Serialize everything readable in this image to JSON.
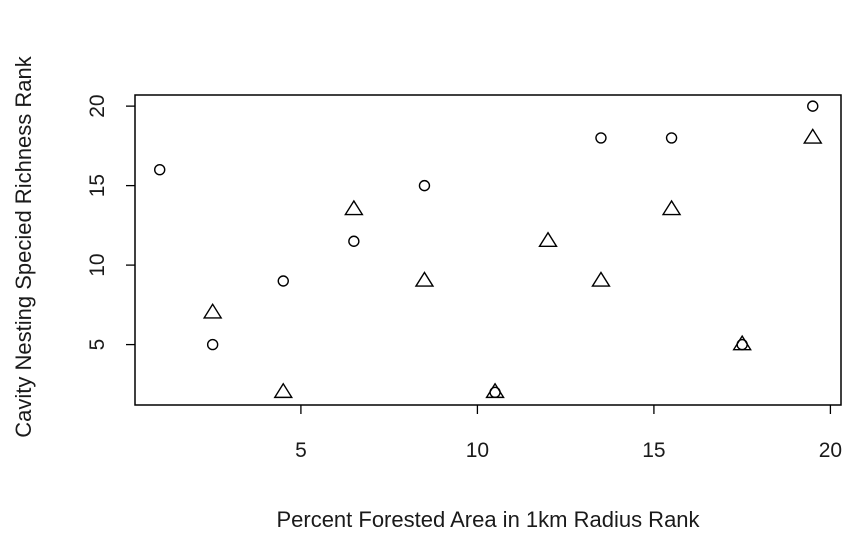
{
  "chart_data": {
    "type": "scatter",
    "title": "",
    "xlabel": "Percent Forested Area in 1km Radius Rank",
    "ylabel": "Cavity Nesting Specied Richness Rank",
    "xlim": [
      0.3,
      20.3
    ],
    "ylim": [
      1.2,
      20.7
    ],
    "x_ticks": [
      5,
      10,
      15,
      20
    ],
    "y_ticks": [
      5,
      10,
      15,
      20
    ],
    "grid": false,
    "legend": "none",
    "series": [
      {
        "marker": "circle",
        "points": [
          [
            1,
            16
          ],
          [
            2.5,
            5
          ],
          [
            4.5,
            9
          ],
          [
            6.5,
            11.5
          ],
          [
            8.5,
            15
          ],
          [
            10.5,
            2
          ],
          [
            13.5,
            18
          ],
          [
            15.5,
            18
          ],
          [
            17.5,
            5
          ],
          [
            19.5,
            20
          ]
        ]
      },
      {
        "marker": "triangle",
        "points": [
          [
            2.5,
            7
          ],
          [
            4.5,
            2
          ],
          [
            6.5,
            13.5
          ],
          [
            8.5,
            9
          ],
          [
            10.5,
            2
          ],
          [
            12,
            11.5
          ],
          [
            13.5,
            9
          ],
          [
            15.5,
            13.5
          ],
          [
            17.5,
            5
          ],
          [
            19.5,
            18
          ]
        ]
      }
    ]
  }
}
